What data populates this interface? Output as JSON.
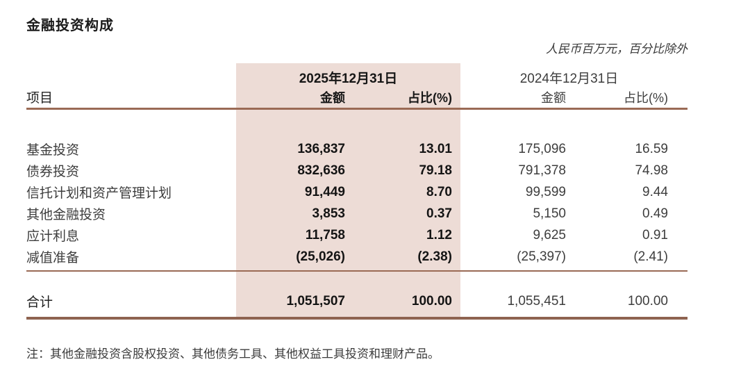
{
  "title": "金融投资构成",
  "unit_note": "人民币百万元，百分比除外",
  "table": {
    "item_header": "项目",
    "group_2025": {
      "date": "2025年12月31日",
      "amount_label": "金额",
      "pct_label": "占比(%)"
    },
    "group_2024": {
      "date": "2024年12月31日",
      "amount_label": "金额",
      "pct_label": "占比(%)"
    },
    "rows": [
      {
        "label": "基金投资",
        "amount_2025": "136,837",
        "pct_2025": "13.01",
        "amount_2024": "175,096",
        "pct_2024": "16.59"
      },
      {
        "label": "债券投资",
        "amount_2025": "832,636",
        "pct_2025": "79.18",
        "amount_2024": "791,378",
        "pct_2024": "74.98"
      },
      {
        "label": "信托计划和资产管理计划",
        "amount_2025": "91,449",
        "pct_2025": "8.70",
        "amount_2024": "99,599",
        "pct_2024": "9.44"
      },
      {
        "label": "其他金融投资",
        "amount_2025": "3,853",
        "pct_2025": "0.37",
        "amount_2024": "5,150",
        "pct_2024": "0.49"
      },
      {
        "label": "应计利息",
        "amount_2025": "11,758",
        "pct_2025": "1.12",
        "amount_2024": "9,625",
        "pct_2024": "0.91"
      },
      {
        "label": "减值准备",
        "amount_2025": "(25,026)",
        "pct_2025": "(2.38)",
        "amount_2024": "(25,397)",
        "pct_2024": "(2.41)"
      }
    ],
    "total": {
      "label": "合计",
      "amount_2025": "1,051,507",
      "pct_2025": "100.00",
      "amount_2024": "1,055,451",
      "pct_2024": "100.00"
    }
  },
  "footnote": "注：其他金融投资含股权投资、其他债务工具、其他权益工具投资和理财产品。",
  "colors": {
    "highlight": "#eddcd6",
    "rule": "#9a6a55"
  }
}
